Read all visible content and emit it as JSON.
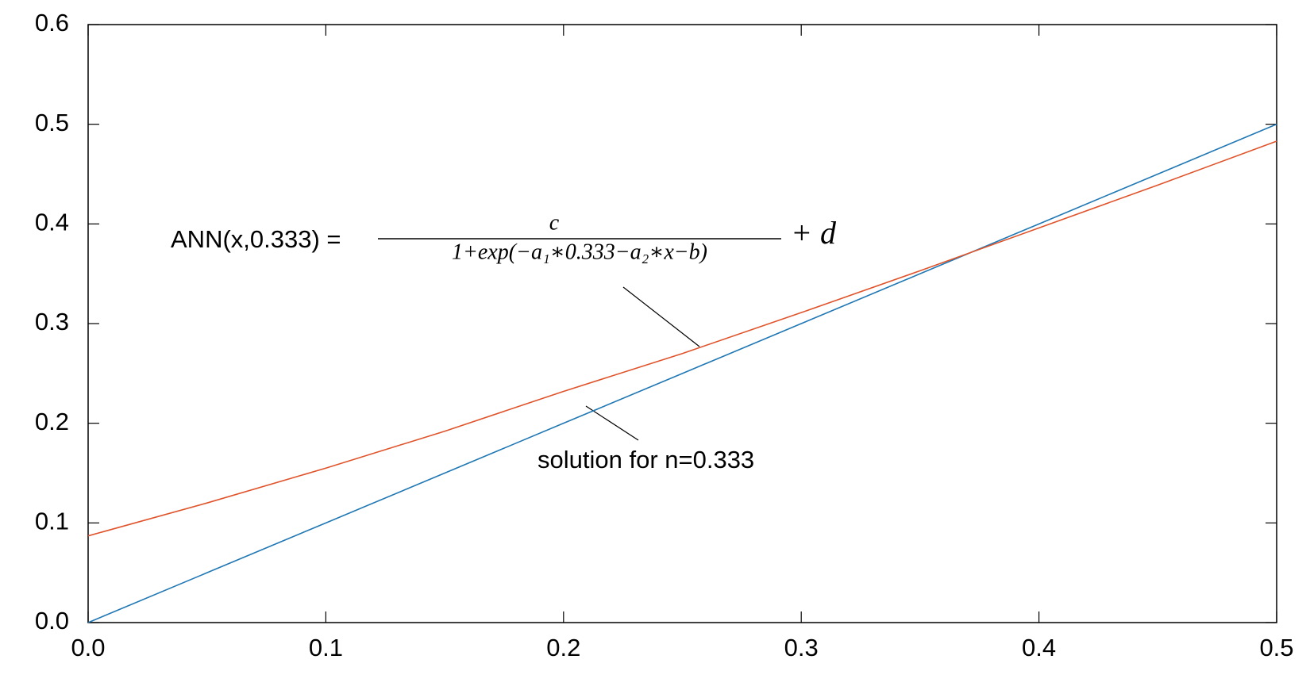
{
  "chart_data": {
    "type": "line",
    "x": [
      0,
      0.05,
      0.1,
      0.15,
      0.2,
      0.25,
      0.3,
      0.35,
      0.4,
      0.45,
      0.5
    ],
    "series": [
      {
        "name": "solution for n=0.333",
        "color": "#1f77b4",
        "values": [
          0,
          0.05,
          0.1,
          0.15,
          0.2,
          0.25,
          0.3,
          0.35,
          0.4,
          0.45,
          0.5
        ]
      },
      {
        "name": "ANN(x,0.333) =",
        "color": "#e0532a",
        "values": [
          0.087,
          0.12,
          0.155,
          0.192,
          0.232,
          0.27,
          0.311,
          0.353,
          0.396,
          0.439,
          0.483
        ]
      }
    ],
    "formula": {
      "numerator": "c",
      "denominator": "1+exp(−a₁∗0.333−a₂∗x−b)",
      "suffix": "+ d"
    },
    "xlim": [
      0,
      0.5
    ],
    "ylim": [
      0,
      0.6
    ],
    "xticks": [
      {
        "value": 0,
        "label": "0.0"
      },
      0.1,
      0.2,
      0.3,
      0.4,
      0.5
    ],
    "yticks": [
      {
        "value": 0,
        "label": "0.0"
      },
      0.1,
      0.2,
      0.3,
      0.4,
      0.5,
      0.6
    ],
    "grid": false
  }
}
